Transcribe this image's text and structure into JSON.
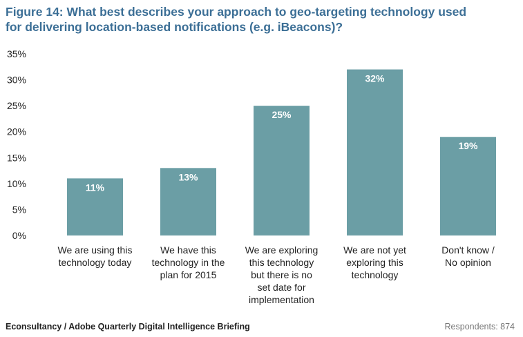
{
  "title_lines": [
    "Figure 14: What best describes your approach to geo-targeting technology used",
    "for delivering location-based notifications (e.g. iBeacons)?"
  ],
  "footer": {
    "source": "Econsultancy / Adobe Quarterly Digital Intelligence Briefing",
    "respondents": "Respondents: 874"
  },
  "colors": {
    "bar": "#6b9ea5",
    "title": "#3c6f96",
    "bar_label": "#ffffff"
  },
  "chart_data": {
    "type": "bar",
    "categories": [
      [
        "We are using this",
        "technology today"
      ],
      [
        "We have this",
        "technology in the",
        "plan for 2015"
      ],
      [
        "We are exploring",
        "this technology",
        "but there is no",
        "set date for",
        "implementation"
      ],
      [
        "We are not yet",
        "exploring this",
        "technology"
      ],
      [
        "Don't know /",
        "No opinion"
      ]
    ],
    "values": [
      11,
      13,
      25,
      32,
      19
    ],
    "data_labels": [
      "11%",
      "13%",
      "25%",
      "32%",
      "19%"
    ],
    "yticks": [
      "0%",
      "5%",
      "10%",
      "15%",
      "20%",
      "25%",
      "30%",
      "35%"
    ],
    "ylim": [
      0,
      35
    ],
    "grid": false,
    "legend": "none"
  }
}
